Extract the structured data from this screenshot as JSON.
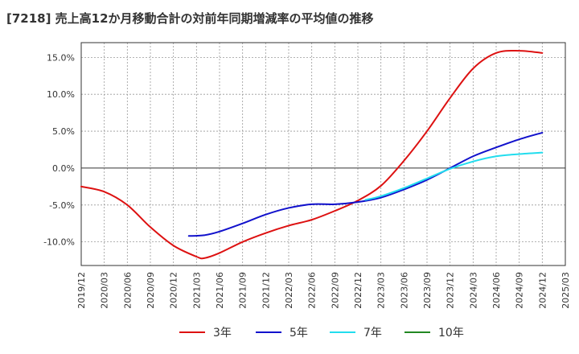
{
  "title": "[7218]  売上高12か月移動合計の対前年同期増減率の平均値の推移",
  "chart_data": {
    "type": "line",
    "title": "[7218]  売上高12か月移動合計の対前年同期増減率の平均値の推移",
    "xlabel": "",
    "ylabel": "",
    "ylim": [
      -13.2,
      17.0
    ],
    "xlim": [
      "2019-12",
      "2025-03"
    ],
    "x_ticks": [
      "2019/12",
      "2020/03",
      "2020/06",
      "2020/09",
      "2020/12",
      "2021/03",
      "2021/06",
      "2021/09",
      "2021/12",
      "2022/03",
      "2022/06",
      "2022/09",
      "2022/12",
      "2023/03",
      "2023/06",
      "2023/09",
      "2023/12",
      "2024/03",
      "2024/06",
      "2024/09",
      "2024/12",
      "2025/03"
    ],
    "y_ticks": [
      -10,
      -5,
      0,
      5,
      10,
      15
    ],
    "y_tick_labels": [
      "-10.0%",
      "-5.0%",
      "0.0%",
      "5.0%",
      "10.0%",
      "15.0%"
    ],
    "grid": true,
    "legend_position": "bottom",
    "series": [
      {
        "name": "3年",
        "color": "#dd1111",
        "points": [
          [
            "2019-12",
            -2.5
          ],
          [
            "2020-03",
            -3.2
          ],
          [
            "2020-06",
            -5.0
          ],
          [
            "2020-09",
            -8.0
          ],
          [
            "2020-12",
            -10.5
          ],
          [
            "2021-03",
            -12.0
          ],
          [
            "2021-04",
            -12.2
          ],
          [
            "2021-06",
            -11.5
          ],
          [
            "2021-09",
            -10.0
          ],
          [
            "2021-12",
            -8.8
          ],
          [
            "2022-03",
            -7.8
          ],
          [
            "2022-06",
            -7.0
          ],
          [
            "2022-09",
            -5.8
          ],
          [
            "2022-12",
            -4.4
          ],
          [
            "2023-03",
            -2.4
          ],
          [
            "2023-06",
            1.0
          ],
          [
            "2023-09",
            5.0
          ],
          [
            "2023-12",
            9.5
          ],
          [
            "2024-03",
            13.5
          ],
          [
            "2024-06",
            15.6
          ],
          [
            "2024-09",
            15.9
          ],
          [
            "2024-12",
            15.6
          ]
        ]
      },
      {
        "name": "5年",
        "color": "#1111cc",
        "points": [
          [
            "2021-02",
            -9.2
          ],
          [
            "2021-04",
            -9.1
          ],
          [
            "2021-06",
            -8.6
          ],
          [
            "2021-09",
            -7.5
          ],
          [
            "2021-12",
            -6.3
          ],
          [
            "2022-03",
            -5.4
          ],
          [
            "2022-06",
            -4.9
          ],
          [
            "2022-09",
            -4.9
          ],
          [
            "2022-12",
            -4.6
          ],
          [
            "2023-03",
            -4.0
          ],
          [
            "2023-06",
            -2.9
          ],
          [
            "2023-09",
            -1.6
          ],
          [
            "2023-12",
            0.0
          ],
          [
            "2024-03",
            1.6
          ],
          [
            "2024-06",
            2.8
          ],
          [
            "2024-09",
            3.9
          ],
          [
            "2024-12",
            4.8
          ]
        ]
      },
      {
        "name": "7年",
        "color": "#22ddee",
        "points": [
          [
            "2023-01",
            -4.3
          ],
          [
            "2023-03",
            -3.8
          ],
          [
            "2023-06",
            -2.7
          ],
          [
            "2023-09",
            -1.4
          ],
          [
            "2023-12",
            -0.1
          ],
          [
            "2024-03",
            0.9
          ],
          [
            "2024-06",
            1.6
          ],
          [
            "2024-09",
            1.9
          ],
          [
            "2024-12",
            2.1
          ]
        ]
      },
      {
        "name": "10年",
        "color": "#228822",
        "points": []
      }
    ]
  }
}
